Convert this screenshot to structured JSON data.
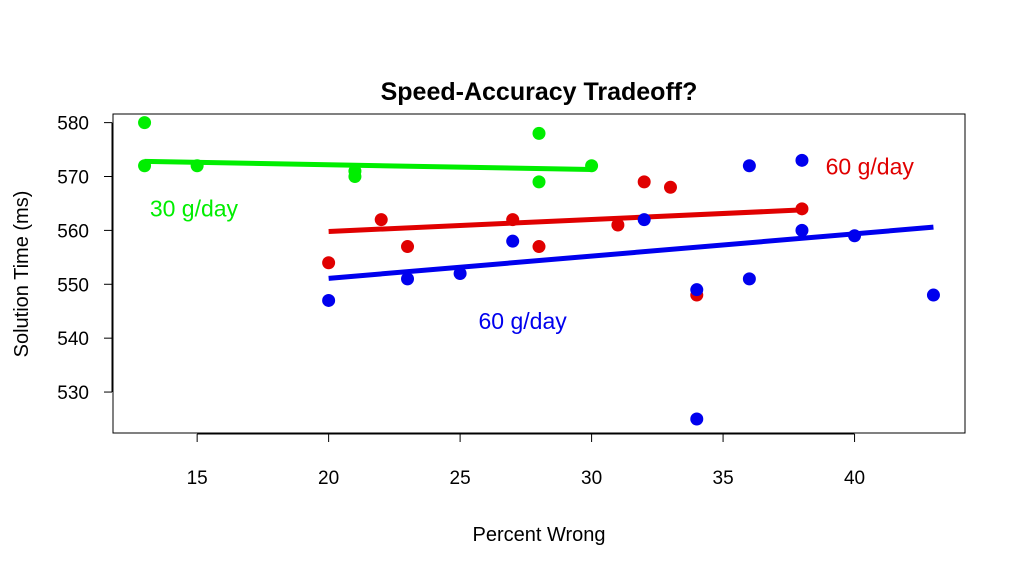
{
  "chart_data": {
    "type": "scatter",
    "title": "Speed-Accuracy Tradeoff?",
    "xlabel": "Percent Wrong",
    "ylabel": "Solution Time (ms)",
    "xlim": [
      11.8,
      44.2
    ],
    "ylim": [
      522.4,
      581.6
    ],
    "xticks": [
      15,
      20,
      25,
      30,
      35,
      40
    ],
    "yticks": [
      530,
      540,
      550,
      560,
      570,
      580
    ],
    "grid": false,
    "series": [
      {
        "name": "30 g/day",
        "color": "#00ee00",
        "points": [
          [
            13,
            580
          ],
          [
            13,
            572
          ],
          [
            15,
            572
          ],
          [
            21,
            571
          ],
          [
            21,
            570
          ],
          [
            28,
            578
          ],
          [
            28,
            569
          ],
          [
            30,
            572
          ]
        ],
        "fit": [
          [
            13,
            572.8
          ],
          [
            30,
            571.3
          ]
        ]
      },
      {
        "name": "60 g/day (red)",
        "color": "#e00000",
        "points": [
          [
            20,
            554
          ],
          [
            22,
            562
          ],
          [
            23,
            557
          ],
          [
            27,
            562
          ],
          [
            28,
            557
          ],
          [
            31,
            561
          ],
          [
            32,
            569
          ],
          [
            33,
            568
          ],
          [
            34,
            548
          ],
          [
            38,
            564
          ]
        ],
        "fit": [
          [
            20,
            559.8
          ],
          [
            38,
            563.8
          ]
        ]
      },
      {
        "name": "60 g/day (blue)",
        "color": "#0000ee",
        "points": [
          [
            20,
            547
          ],
          [
            23,
            551
          ],
          [
            25,
            552
          ],
          [
            27,
            558
          ],
          [
            32,
            562
          ],
          [
            34,
            549
          ],
          [
            34,
            525
          ],
          [
            36,
            572
          ],
          [
            36,
            551
          ],
          [
            38,
            573
          ],
          [
            38,
            560
          ],
          [
            40,
            559
          ],
          [
            43,
            548
          ]
        ],
        "fit": [
          [
            20,
            551.1
          ],
          [
            43,
            560.6
          ]
        ]
      }
    ],
    "annotations": [
      {
        "text": "30 g/day",
        "color": "#00ee00",
        "x": 13.2,
        "y": 564.1
      },
      {
        "text": "60 g/day",
        "color": "#e00000",
        "x": 38.9,
        "y": 571.9
      },
      {
        "text": "60 g/day",
        "color": "#0000ee",
        "x": 25.7,
        "y": 543.2
      }
    ]
  }
}
